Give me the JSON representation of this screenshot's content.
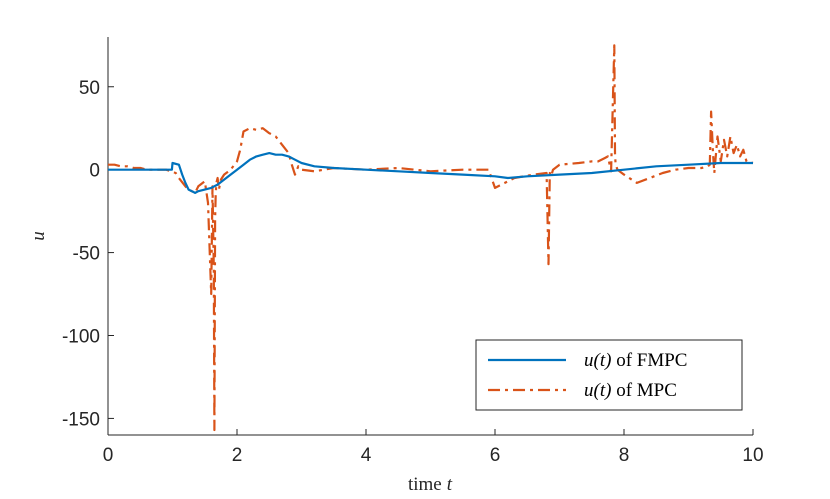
{
  "chart_data": {
    "type": "line",
    "title": "",
    "xlabel": "time",
    "xlabel_var": "t",
    "ylabel": "u",
    "xlim": [
      0,
      10
    ],
    "ylim": [
      -160,
      80
    ],
    "xticks": [
      0,
      2,
      4,
      6,
      8,
      10
    ],
    "yticks": [
      50,
      0,
      -50,
      -100,
      -150
    ],
    "grid": false,
    "legend_position": "bottom-right",
    "series": [
      {
        "name": "u(t) of FMPC",
        "legend_math": "u(t)",
        "legend_suffix": " of FMPC",
        "color": "#0072bd",
        "style": "solid",
        "x": [
          0,
          0.5,
          0.99,
          1.0,
          1.1,
          1.15,
          1.2,
          1.25,
          1.3,
          1.35,
          1.4,
          1.5,
          1.6,
          1.7,
          1.8,
          1.9,
          2.0,
          2.1,
          2.2,
          2.3,
          2.4,
          2.5,
          2.6,
          2.7,
          2.8,
          2.9,
          3.0,
          3.2,
          3.5,
          4.0,
          4.5,
          5.0,
          5.5,
          6.0,
          6.2,
          6.5,
          7.0,
          7.5,
          8.0,
          8.5,
          9.0,
          9.5,
          10.0
        ],
        "y": [
          0,
          0,
          0,
          4,
          3,
          -3,
          -8,
          -12,
          -13,
          -14,
          -13,
          -12,
          -11,
          -9,
          -6,
          -3,
          0,
          3,
          6,
          8,
          9,
          10,
          9,
          9,
          8,
          6,
          4,
          2,
          1,
          0,
          -1,
          -2,
          -3,
          -4,
          -5,
          -4,
          -3,
          -2,
          0,
          2,
          3,
          4,
          4
        ]
      },
      {
        "name": "u(t) of MPC",
        "legend_math": "u(t)",
        "legend_suffix": " of MPC",
        "color": "#d95319",
        "style": "dashdot",
        "x": [
          0,
          0.1,
          0.2,
          0.3,
          0.4,
          0.5,
          0.6,
          0.9,
          1.05,
          1.1,
          1.2,
          1.25,
          1.35,
          1.4,
          1.5,
          1.55,
          1.6,
          1.62,
          1.64,
          1.65,
          1.66,
          1.67,
          1.68,
          1.7,
          1.72,
          1.75,
          1.8,
          1.9,
          2.0,
          2.05,
          2.1,
          2.2,
          2.3,
          2.4,
          2.5,
          2.6,
          2.7,
          2.8,
          2.85,
          2.9,
          2.95,
          3.0,
          3.2,
          3.5,
          4.0,
          4.5,
          5.0,
          5.5,
          5.9,
          6.0,
          6.3,
          6.6,
          6.8,
          6.83,
          6.85,
          6.87,
          6.9,
          7.0,
          7.3,
          7.5,
          7.6,
          7.7,
          7.75,
          7.8,
          7.85,
          7.86,
          7.87,
          7.88,
          7.9,
          8.0,
          8.2,
          8.4,
          8.6,
          8.8,
          9.0,
          9.2,
          9.3,
          9.33,
          9.35,
          9.38,
          9.4,
          9.45,
          9.5,
          9.55,
          9.6,
          9.65,
          9.7,
          9.75,
          9.8,
          9.85,
          9.9,
          10.0
        ],
        "y": [
          3,
          3,
          2,
          2,
          1,
          1,
          0,
          0,
          -2,
          -5,
          -10,
          -12,
          -14,
          -10,
          -7,
          -20,
          -75,
          -10,
          -60,
          -157,
          -30,
          -15,
          -8,
          -5,
          -12,
          -6,
          -3,
          0,
          5,
          12,
          23,
          25,
          24,
          25,
          22,
          20,
          15,
          10,
          3,
          -3,
          2,
          0,
          -1,
          1,
          0,
          1,
          -1,
          0,
          0,
          -11,
          -5,
          -3,
          -2,
          -57,
          -2,
          -4,
          0,
          3,
          4,
          5,
          5,
          7,
          8,
          -1,
          75,
          10,
          3,
          2,
          0,
          -3,
          -8,
          -5,
          -2,
          0,
          1,
          1,
          2,
          3,
          35,
          10,
          -2,
          20,
          5,
          18,
          8,
          20,
          10,
          15,
          8,
          12,
          5,
          4
        ]
      }
    ]
  }
}
